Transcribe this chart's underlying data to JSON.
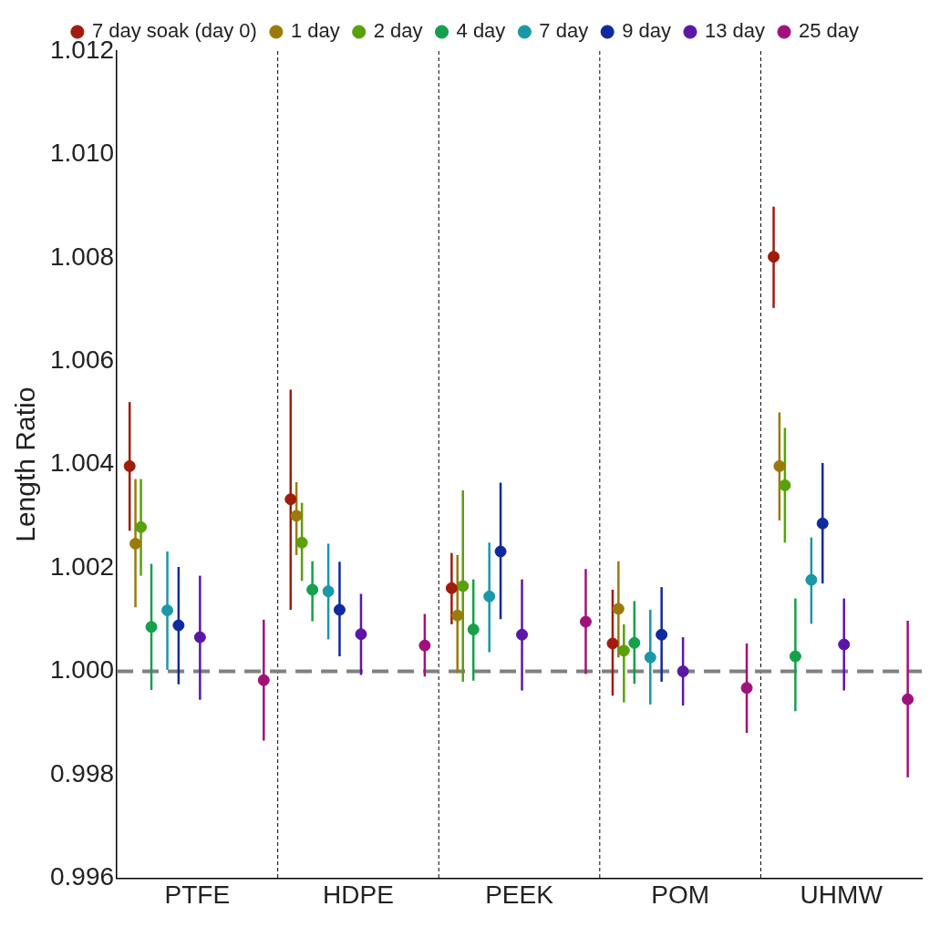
{
  "chart_data": {
    "type": "scatter",
    "ylabel": "Length Ratio",
    "categories": [
      "PTFE",
      "HDPE",
      "PEEK",
      "POM",
      "UHMW"
    ],
    "ylim": [
      0.996,
      1.012
    ],
    "yticks": [
      {
        "value": 0.996,
        "label": "0.996"
      },
      {
        "value": 0.998,
        "label": "0.998"
      },
      {
        "value": 1.0,
        "label": "1.000"
      },
      {
        "value": 1.002,
        "label": "1.002"
      },
      {
        "value": 1.004,
        "label": "1.004"
      },
      {
        "value": 1.006,
        "label": "1.006"
      },
      {
        "value": 1.008,
        "label": "1.008"
      },
      {
        "value": 1.01,
        "label": "1.010"
      },
      {
        "value": 1.012,
        "label": "1.012"
      }
    ],
    "grid": "x",
    "legend": "top",
    "marker": "circle",
    "ref_lines": [
      {
        "axis": "y",
        "value": 1.0,
        "color": "#808080",
        "line_style": "dashed"
      }
    ],
    "series": [
      {
        "name": "7 day soak (day 0)",
        "color": "#a01c0c",
        "values": [
          1.00397,
          1.00333,
          1.00161,
          1.00054,
          1.00802
        ],
        "errors": [
          [
            1.00272,
            1.00521
          ],
          [
            1.00119,
            1.00545
          ],
          [
            1.00091,
            1.00229
          ],
          [
            0.99953,
            1.00158
          ],
          [
            1.00703,
            1.00899
          ]
        ]
      },
      {
        "name": "1 day",
        "color": "#9a7a0b",
        "values": [
          1.00247,
          1.00301,
          1.00108,
          1.00121,
          1.00397
        ],
        "errors": [
          [
            1.00124,
            1.00372
          ],
          [
            1.00225,
            1.00366
          ],
          [
            0.99997,
            1.00225
          ],
          [
            1.00027,
            1.00213
          ],
          [
            1.00292,
            1.00501
          ]
        ]
      },
      {
        "name": "2 day",
        "color": "#58a10d",
        "values": [
          1.00279,
          1.00249,
          1.00165,
          1.0004,
          1.0036
        ],
        "errors": [
          [
            1.00185,
            1.00372
          ],
          [
            1.00175,
            1.00326
          ],
          [
            0.9998,
            1.0035
          ],
          [
            0.9994,
            1.00091
          ],
          [
            1.00249,
            1.00471
          ]
        ]
      },
      {
        "name": "4 day",
        "color": "#15a04a",
        "values": [
          1.00086,
          1.00158,
          1.00081,
          1.00055,
          1.00029
        ],
        "errors": [
          [
            0.99964,
            1.00208
          ],
          [
            1.00097,
            1.00213
          ],
          [
            0.99982,
            1.00178
          ],
          [
            0.99976,
            1.00136
          ],
          [
            0.99923,
            1.00141
          ]
        ]
      },
      {
        "name": "7 day",
        "color": "#1a98a8",
        "values": [
          1.00118,
          1.00155,
          1.00145,
          1.00027,
          1.00177
        ],
        "errors": [
          [
            1.00003,
            1.00232
          ],
          [
            1.00062,
            1.00247
          ],
          [
            1.00037,
            1.00249
          ],
          [
            0.99936,
            1.00119
          ],
          [
            1.00092,
            1.00259
          ]
        ]
      },
      {
        "name": "9 day",
        "color": "#0f2a9e",
        "values": [
          1.00089,
          1.00119,
          1.00232,
          1.00071,
          1.00286
        ],
        "errors": [
          [
            0.99975,
            1.00202
          ],
          [
            1.00029,
            1.00212
          ],
          [
            1.00101,
            1.00365
          ],
          [
            0.9998,
            1.00163
          ],
          [
            1.0017,
            1.00403
          ]
        ]
      },
      {
        "name": "13 day",
        "color": "#5b16a8",
        "values": [
          1.00066,
          1.00072,
          1.00071,
          1.0,
          1.00052
        ],
        "errors": [
          [
            0.99945,
            1.00185
          ],
          [
            0.99993,
            1.0015
          ],
          [
            0.99963,
            1.00178
          ],
          [
            0.99934,
            1.00066
          ],
          [
            0.99963,
            1.00141
          ]
        ]
      },
      {
        "name": "25 day",
        "color": "#a0127a",
        "values": [
          0.99983,
          1.0005,
          1.00096,
          0.99968,
          0.99946
        ],
        "errors": [
          [
            0.99866,
            1.001
          ],
          [
            0.9999,
            1.00111
          ],
          [
            0.99995,
            1.00198
          ],
          [
            0.99881,
            1.00054
          ],
          [
            0.99795,
            1.00098
          ]
        ]
      }
    ]
  }
}
